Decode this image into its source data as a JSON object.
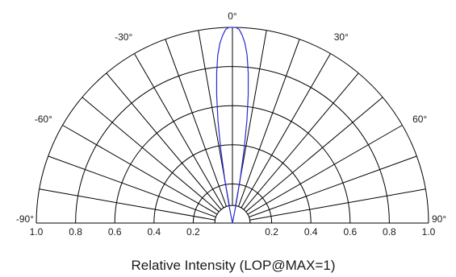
{
  "chart_data": {
    "type": "polar-radiation-pattern",
    "xlabel": "Relative Intensity (LOP@MAX=1)",
    "angle_range": [
      -90,
      90
    ],
    "angle_grid_step_deg": 10,
    "angle_labels": [
      {
        "angle": 0,
        "text": "0°"
      },
      {
        "angle": -30,
        "text": "-30°"
      },
      {
        "angle": 30,
        "text": "30°"
      },
      {
        "angle": -60,
        "text": "-60°"
      },
      {
        "angle": 60,
        "text": "60°"
      },
      {
        "angle": -90,
        "text": "-90°"
      },
      {
        "angle": 90,
        "text": "90°"
      }
    ],
    "radial_range": [
      0,
      1.0
    ],
    "radial_grid": [
      0.2,
      0.4,
      0.6,
      0.8,
      1.0
    ],
    "radial_ticks_left": [
      "1.0",
      "0.8",
      "0.6",
      "0.4",
      "0.2"
    ],
    "radial_ticks_right": [
      "0.2",
      "0.4",
      "0.6",
      "0.8",
      "1.0"
    ],
    "series": [
      {
        "color": "#2a2ad4",
        "points": [
          {
            "angle": -12,
            "r": 0.0
          },
          {
            "angle": -11,
            "r": 0.08
          },
          {
            "angle": -10,
            "r": 0.22
          },
          {
            "angle": -9,
            "r": 0.38
          },
          {
            "angle": -8,
            "r": 0.53
          },
          {
            "angle": -7,
            "r": 0.66
          },
          {
            "angle": -6,
            "r": 0.77
          },
          {
            "angle": -5,
            "r": 0.86
          },
          {
            "angle": -4,
            "r": 0.92
          },
          {
            "angle": -3,
            "r": 0.96
          },
          {
            "angle": -2,
            "r": 0.99
          },
          {
            "angle": -1,
            "r": 1.0
          },
          {
            "angle": 0,
            "r": 1.0
          },
          {
            "angle": 1,
            "r": 1.0
          },
          {
            "angle": 2,
            "r": 0.99
          },
          {
            "angle": 3,
            "r": 0.96
          },
          {
            "angle": 4,
            "r": 0.92
          },
          {
            "angle": 5,
            "r": 0.86
          },
          {
            "angle": 6,
            "r": 0.77
          },
          {
            "angle": 7,
            "r": 0.66
          },
          {
            "angle": 8,
            "r": 0.53
          },
          {
            "angle": 9,
            "r": 0.38
          },
          {
            "angle": 10,
            "r": 0.22
          },
          {
            "angle": 11,
            "r": 0.08
          },
          {
            "angle": 12,
            "r": 0.0
          }
        ]
      }
    ]
  }
}
